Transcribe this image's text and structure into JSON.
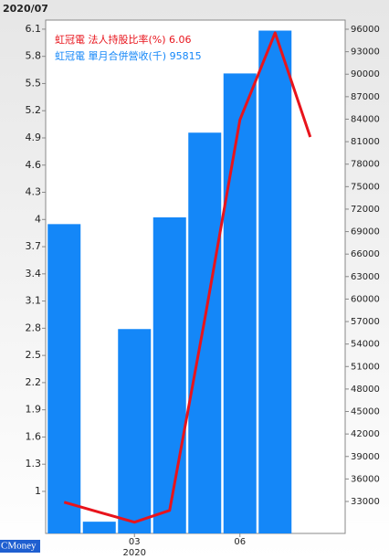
{
  "chart_data": {
    "type": "bar-line",
    "date_label": "2020/07",
    "stock": "虹冠電",
    "brand": "CMoney",
    "categories": [
      null,
      null,
      "03",
      null,
      null,
      "06",
      null,
      null
    ],
    "year_label": "2020",
    "series": [
      {
        "name": "法人持股比率(%)",
        "color": "#e8141c",
        "type": "line",
        "axis": "y",
        "values": [
          0.88,
          0.77,
          0.66,
          0.79,
          2.9,
          5.1,
          6.06,
          4.91
        ]
      },
      {
        "name": "單月合併營收(千)",
        "color": "#1487f8",
        "type": "bar",
        "axis": "y2",
        "values": [
          70000,
          30300,
          56000,
          70900,
          82200,
          90100,
          95815,
          null
        ]
      }
    ],
    "ylim": [
      0.536,
      6.2
    ],
    "yticks": [
      1,
      1.3,
      1.6,
      1.9,
      2.2,
      2.5,
      2.8,
      3.1,
      3.4,
      3.7,
      4,
      4.3,
      4.6,
      4.9,
      5.2,
      5.5,
      5.8,
      6.1
    ],
    "y2lim": [
      28735,
      97218
    ],
    "y2ticks": [
      33000,
      36000,
      39000,
      42000,
      45000,
      48000,
      51000,
      54000,
      57000,
      60000,
      63000,
      66000,
      69000,
      72000,
      75000,
      78000,
      81000,
      84000,
      87000,
      90000,
      93000,
      96000
    ]
  }
}
